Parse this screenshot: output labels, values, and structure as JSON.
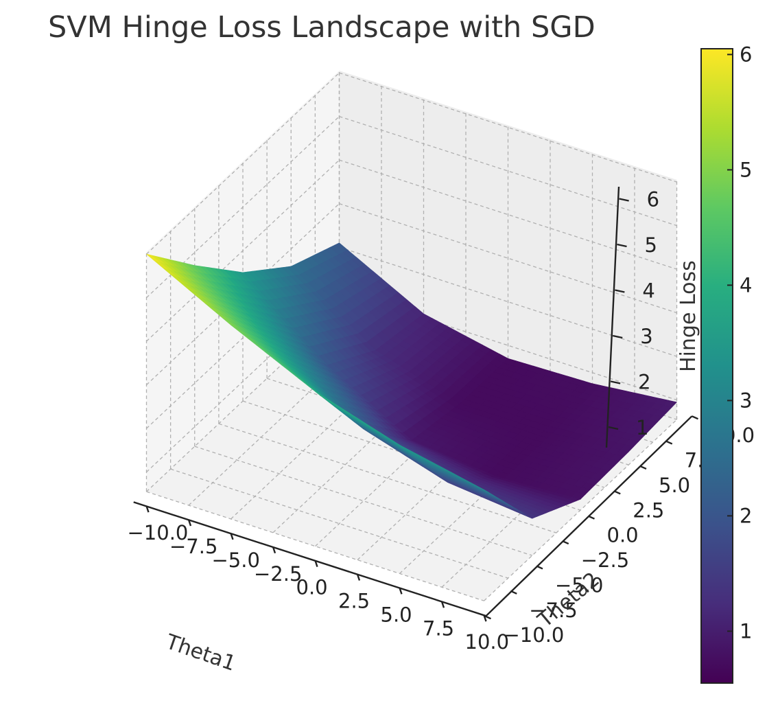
{
  "chart_data": {
    "type": "surface3d",
    "title": "SVM Hinge Loss Landscape with SGD",
    "xlabel": "Theta1",
    "ylabel": "Theta2",
    "zlabel": "Hinge Loss",
    "xlim": [
      -10,
      10
    ],
    "ylim": [
      -10,
      10
    ],
    "zlim": [
      0.55,
      6.05
    ],
    "x_ticks": [
      "−10.0",
      "−7.5",
      "−5.0",
      "−2.5",
      "0.0",
      "2.5",
      "5.0",
      "7.5",
      "10.0"
    ],
    "y_ticks": [
      "−10.0",
      "−7.5",
      "−5.0",
      "−2.5",
      "0.0",
      "2.5",
      "5.0",
      "7.5",
      "10.0"
    ],
    "z_ticks": [
      "1",
      "2",
      "3",
      "4",
      "5",
      "6"
    ],
    "grid": true,
    "colormap": "viridis",
    "colorbar": {
      "label": "",
      "range": [
        0.55,
        6.05
      ],
      "ticks": [
        "1",
        "2",
        "3",
        "4",
        "5",
        "6"
      ]
    },
    "surface": {
      "description_of_values": "Hinge loss sampled on a Theta1 x Theta2 grid",
      "x": [
        -10,
        -5,
        0,
        5,
        10
      ],
      "y": [
        -10,
        -5,
        0,
        5,
        10
      ],
      "z": [
        [
          6.0,
          4.7,
          3.5,
          2.6,
          2.1
        ],
        [
          5.0,
          3.5,
          2.0,
          1.3,
          1.1
        ],
        [
          4.1,
          2.2,
          0.9,
          0.7,
          0.7
        ],
        [
          3.5,
          1.6,
          0.7,
          0.7,
          0.75
        ],
        [
          3.1,
          1.4,
          0.8,
          0.85,
          0.95
        ]
      ]
    }
  }
}
